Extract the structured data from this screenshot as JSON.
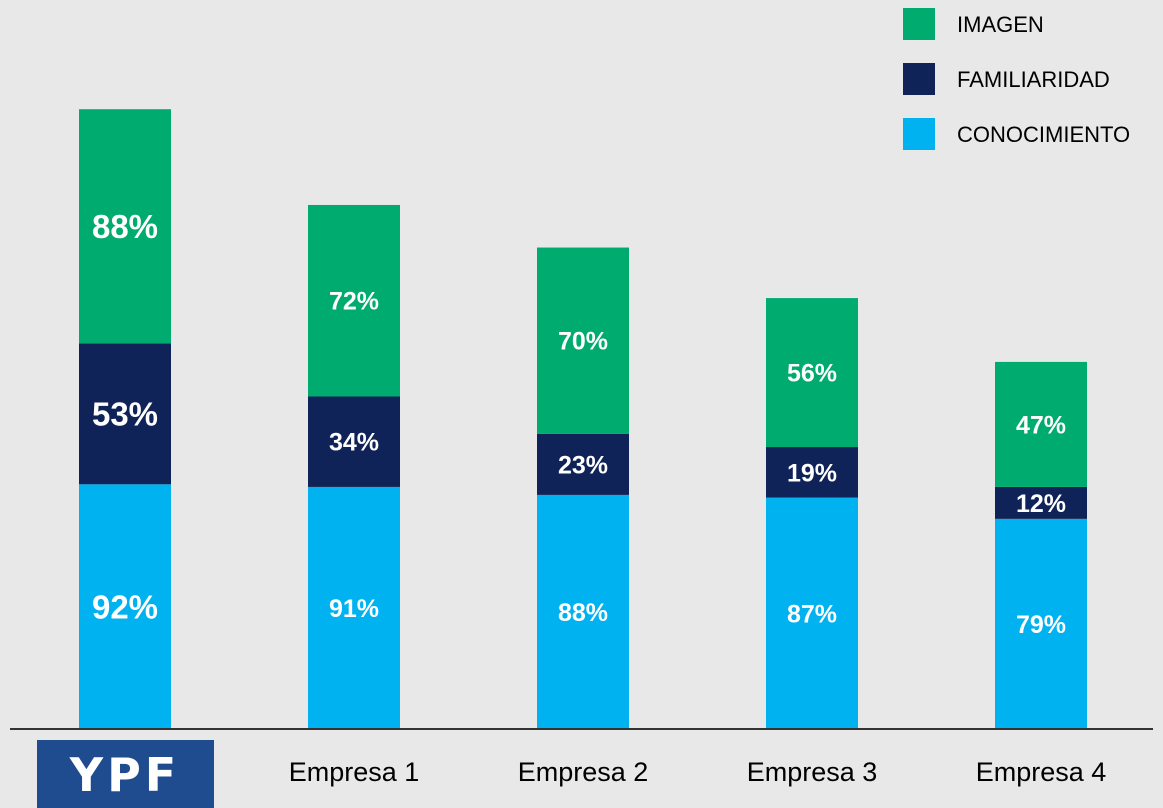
{
  "colors": {
    "background": "#e8e8e8",
    "imagen": "#00ab70",
    "familiaridad": "#0f2358",
    "conocimiento": "#00b2f0",
    "logo_bg": "#1f4b8f",
    "axis": "#333333"
  },
  "logo": {
    "text": "YPF"
  },
  "legend": {
    "placement": "top-right",
    "items": [
      {
        "label": "IMAGEN",
        "color_key": "imagen"
      },
      {
        "label": "FAMILIARIDAD",
        "color_key": "familiaridad"
      },
      {
        "label": "CONOCIMIENTO",
        "color_key": "conocimiento"
      }
    ]
  },
  "chart_data": {
    "type": "bar",
    "stacked": true,
    "categories": [
      "YPF",
      "Empresa 1",
      "Empresa 2",
      "Empresa 3",
      "Empresa 4"
    ],
    "series": [
      {
        "name": "CONOCIMIENTO",
        "values": [
          92,
          91,
          88,
          87,
          79
        ],
        "labels": [
          "92%",
          "91%",
          "88%",
          "87%",
          "79%"
        ]
      },
      {
        "name": "FAMILIARIDAD",
        "values": [
          53,
          34,
          23,
          19,
          12
        ],
        "labels": [
          "53%",
          "34%",
          "23%",
          "19%",
          "12%"
        ]
      },
      {
        "name": "IMAGEN",
        "values": [
          88,
          72,
          70,
          56,
          47
        ],
        "labels": [
          "88%",
          "72%",
          "70%",
          "56%",
          "47%"
        ]
      }
    ],
    "grid": false,
    "title": "",
    "xlabel": "",
    "ylabel": ""
  }
}
